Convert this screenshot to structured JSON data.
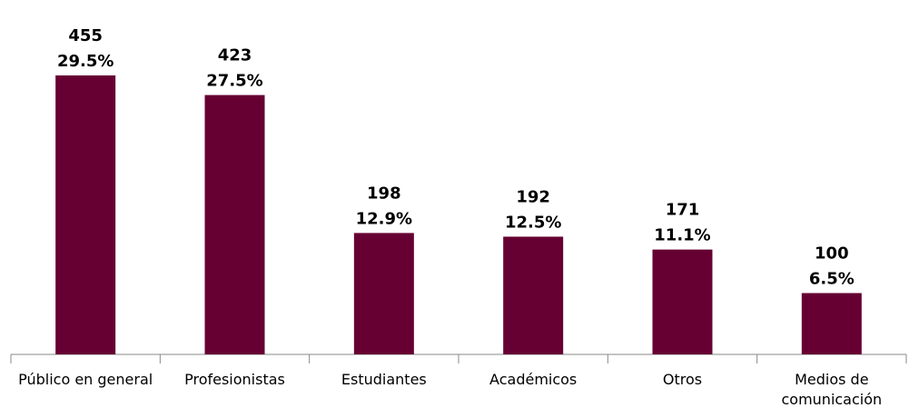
{
  "chart_data": {
    "type": "bar",
    "categories": [
      "Público en general",
      "Profesionistas",
      "Estudiantes",
      "Académicos",
      "Otros",
      "Medios de comunicación"
    ],
    "values": [
      455,
      423,
      198,
      192,
      171,
      100
    ],
    "percent_labels": [
      "29.5%",
      "27.5%",
      "12.9%",
      "12.5%",
      "11.1%",
      "6.5%"
    ],
    "color": "#660033"
  }
}
